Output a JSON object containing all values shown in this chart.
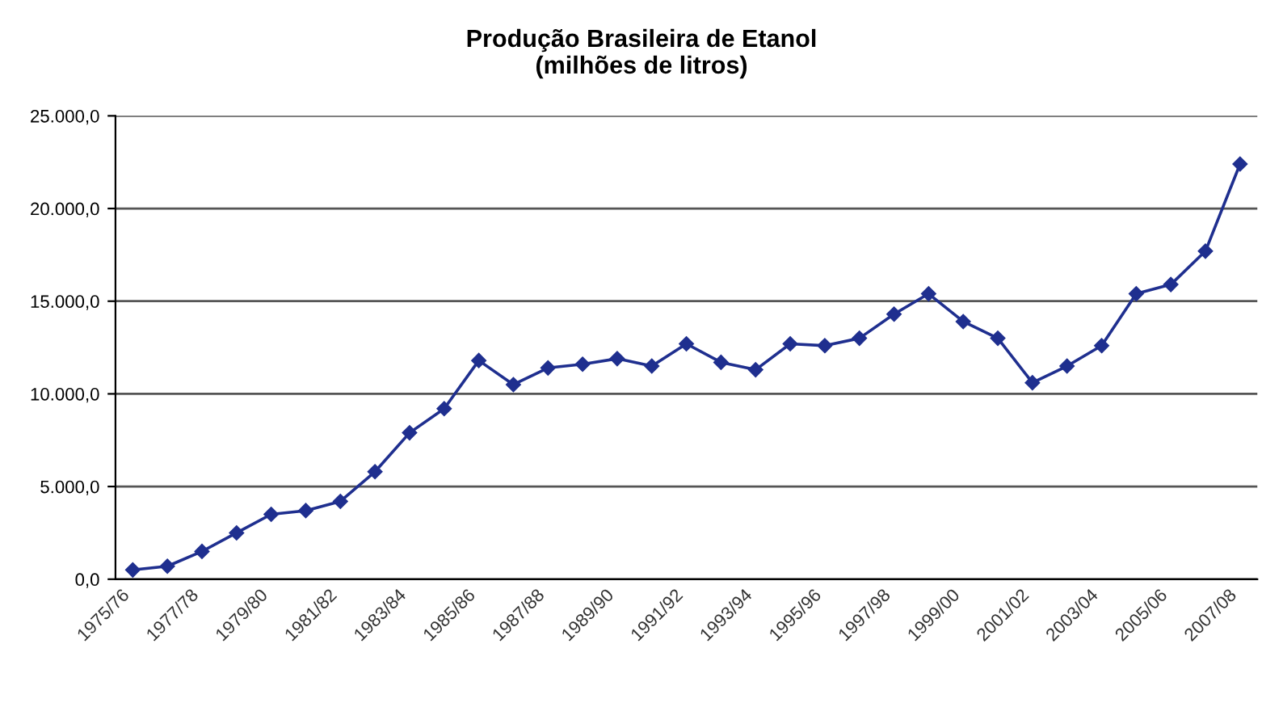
{
  "chart_data": {
    "type": "line",
    "title": "Produção Brasileira de Etanol\n(milhões de litros)",
    "categories": [
      "1975/76",
      null,
      "1977/78",
      null,
      "1979/80",
      null,
      "1981/82",
      null,
      "1983/84",
      null,
      "1985/86",
      null,
      "1987/88",
      null,
      "1989/90",
      null,
      "1991/92",
      null,
      "1993/94",
      null,
      "1995/96",
      null,
      "1997/98",
      null,
      "1999/00",
      null,
      "2001/02",
      null,
      "2003/04",
      null,
      "2005/06",
      null,
      "2007/08"
    ],
    "series": [
      {
        "color": "#1f2f8f",
        "values": [
          500,
          700,
          1500,
          2500,
          3500,
          3700,
          4200,
          5800,
          7900,
          9200,
          11800,
          10500,
          11400,
          11600,
          11900,
          11500,
          12700,
          11700,
          11300,
          12700,
          12600,
          13000,
          14300,
          15400,
          13900,
          13000,
          10600,
          11500,
          12600,
          15400,
          15900,
          17700,
          22400
        ]
      }
    ],
    "ylim": [
      0,
      25000
    ],
    "yticks": [
      {
        "value": 0,
        "label": "0,0"
      },
      {
        "value": 5000,
        "label": "5.000,0"
      },
      {
        "value": 10000,
        "label": "10.000,0"
      },
      {
        "value": 15000,
        "label": "15.000,0"
      },
      {
        "value": 20000,
        "label": "20.000,0"
      },
      {
        "value": 25000,
        "label": "25.000,0"
      }
    ],
    "grid": "y",
    "marker": "diamond",
    "line_style": "solid"
  }
}
